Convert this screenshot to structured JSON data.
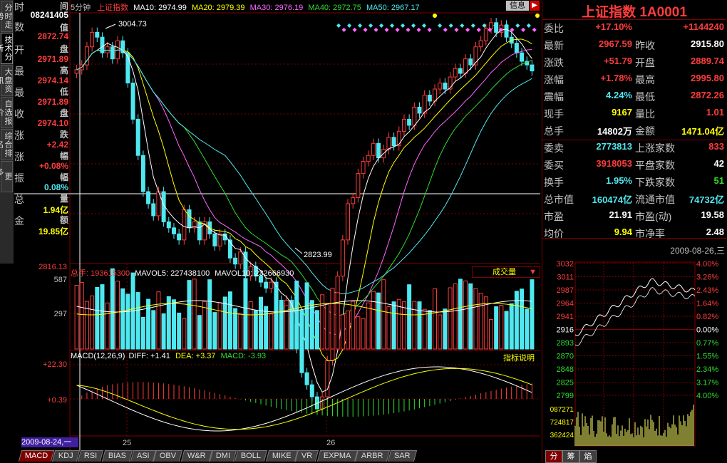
{
  "tabs_left": [
    "分时走势",
    "技术分析",
    "大盘资讯",
    "自选报价",
    "综合排名",
    "更多..."
  ],
  "tabs_left_active": 1,
  "info_panel": {
    "rows": [
      {
        "label": "时",
        "value": "间",
        "color": "#c0c0c0"
      },
      {
        "label": "数",
        "value": "08241405",
        "color": "#ffffff"
      },
      {
        "label": "开",
        "value": "值",
        "color": "#c0c0c0"
      },
      {
        "label": "最",
        "value": "2872.74",
        "color": "#ff3c3c"
      },
      {
        "label": "最",
        "value": "盘",
        "color": "#c0c0c0"
      },
      {
        "label": "收",
        "value": "2971.89",
        "color": "#ff3c3c"
      },
      {
        "label": "涨",
        "value": "高",
        "color": "#c0c0c0"
      },
      {
        "label": "涨",
        "value": "2974.14",
        "color": "#ff3c3c"
      },
      {
        "label": "振",
        "value": "低",
        "color": "#c0c0c0"
      },
      {
        "label": "总",
        "value": "2971.89",
        "color": "#ff3c3c"
      },
      {
        "label": "金",
        "value": "盘",
        "color": "#c0c0c0"
      }
    ],
    "extra_values": [
      "2974.10",
      "跌",
      "+2.42",
      "幅",
      "+0.08%",
      "幅",
      "0.08%",
      "量",
      "1.94亿",
      "额",
      "19.85亿"
    ]
  },
  "main_chart": {
    "period": "5分钟",
    "title": "上证指数",
    "ma_labels": [
      {
        "text": "MA10: 2974.99",
        "color": "#ffffff"
      },
      {
        "text": "MA20: 2979.39",
        "color": "#ffff00"
      },
      {
        "text": "MA30: 2976.19",
        "color": "#ff66ff"
      },
      {
        "text": "MA40: 2972.75",
        "color": "#2fdc2f"
      },
      {
        "text": "MA50: 2967.17",
        "color": "#4fe8f0"
      }
    ],
    "info_button": "信息",
    "high_marker": "3004.73",
    "low_marker": "2823.99",
    "y_axis_bottom": "2816.13"
  },
  "volume_chart": {
    "label_total": "总手: 193615300",
    "label_mavol5": "MAVOL5: 227438100",
    "label_mavol10": "MAVOL10: 232666930",
    "selector": "成交量",
    "y_ticks": [
      "587",
      "297"
    ]
  },
  "macd_chart": {
    "label": "MACD(12,26,9)",
    "diff": "DIFF: +1.41",
    "dea": "DEA: +3.37",
    "macd": "MACD: -3.93",
    "help": "指标说明",
    "y_ticks": [
      "+22.30",
      "+0.39"
    ]
  },
  "x_axis": {
    "date_label": "2009-08-24,一",
    "day_labels": [
      "25",
      "26"
    ]
  },
  "bottom_tabs": [
    "MACD",
    "KDJ",
    "RSI",
    "BIAS",
    "ASI",
    "OBV",
    "W&R",
    "DMI",
    "BOLL",
    "MIKE",
    "VR",
    "EXPMA",
    "ARBR",
    "SAR"
  ],
  "bottom_tabs_active": 0,
  "right_panel": {
    "title": "上证指数 1A0001",
    "rows_block1": [
      {
        "l1": "委比",
        "v1": "+17.10%",
        "c1": "#ff3c3c",
        "l2": "",
        "v2": "+1144240",
        "c2": "#ff3c3c"
      },
      {
        "l1": "最新",
        "v1": "2967.59",
        "c1": "#ff3c3c",
        "l2": "昨收",
        "v2": "2915.80",
        "c2": "#ffffff"
      },
      {
        "l1": "涨跌",
        "v1": "+51.79",
        "c1": "#ff3c3c",
        "l2": "开盘",
        "v2": "2889.74",
        "c2": "#ff3c3c"
      },
      {
        "l1": "涨幅",
        "v1": "+1.78%",
        "c1": "#ff3c3c",
        "l2": "最高",
        "v2": "2995.80",
        "c2": "#ff3c3c"
      },
      {
        "l1": "震幅",
        "v1": "4.24%",
        "c1": "#4fe8f0",
        "l2": "最低",
        "v2": "2872.26",
        "c2": "#ff3c3c"
      },
      {
        "l1": "现手",
        "v1": "9167",
        "c1": "#ffff00",
        "l2": "量比",
        "v2": "1.01",
        "c2": "#ff3c3c"
      },
      {
        "l1": "总手",
        "v1": "14802万",
        "c1": "#ffffff",
        "l2": "金额",
        "v2": "1471.04亿",
        "c2": "#ffff00"
      }
    ],
    "rows_block2": [
      {
        "l1": "委卖",
        "v1": "2773813",
        "c1": "#4fe8f0",
        "l2": "上涨家数",
        "v2": "833",
        "c2": "#ff3c3c"
      },
      {
        "l1": "委买",
        "v1": "3918053",
        "c1": "#ff3c3c",
        "l2": "平盘家数",
        "v2": "42",
        "c2": "#ffffff"
      },
      {
        "l1": "换手",
        "v1": "1.95%",
        "c1": "#4fe8f0",
        "l2": "下跌家数",
        "v2": "51",
        "c2": "#2fdc2f"
      },
      {
        "l1": "总市值",
        "v1": "160474亿",
        "c1": "#4fe8f0",
        "l2": "流通市值",
        "v2": "74732亿",
        "c2": "#4fe8f0"
      },
      {
        "l1": "市盈",
        "v1": "21.91",
        "c1": "#ffffff",
        "l2": "市盈(动)",
        "v2": "19.58",
        "c2": "#ffffff"
      },
      {
        "l1": "均价",
        "v1": "9.94",
        "c1": "#ffff00",
        "l2": "市净率",
        "v2": "2.48",
        "c2": "#ffffff"
      }
    ],
    "mini_date": "2009-08-26,三",
    "mini_left_ticks": [
      "3032",
      "3011",
      "2987",
      "2964",
      "2941",
      "2916",
      "2893",
      "2870",
      "2848",
      "2825",
      "2799"
    ],
    "mini_right_ticks": [
      "4.00%",
      "3.26%",
      "2.43%",
      "1.64%",
      "0.82%",
      "0.00%",
      "0.77%",
      "1.55%",
      "2.34%",
      "3.17%",
      "4.00%"
    ],
    "mini_vol_ticks": [
      "087271",
      "724817",
      "362424"
    ],
    "bottom_tabs": [
      "分",
      "筹",
      "焰"
    ]
  }
}
